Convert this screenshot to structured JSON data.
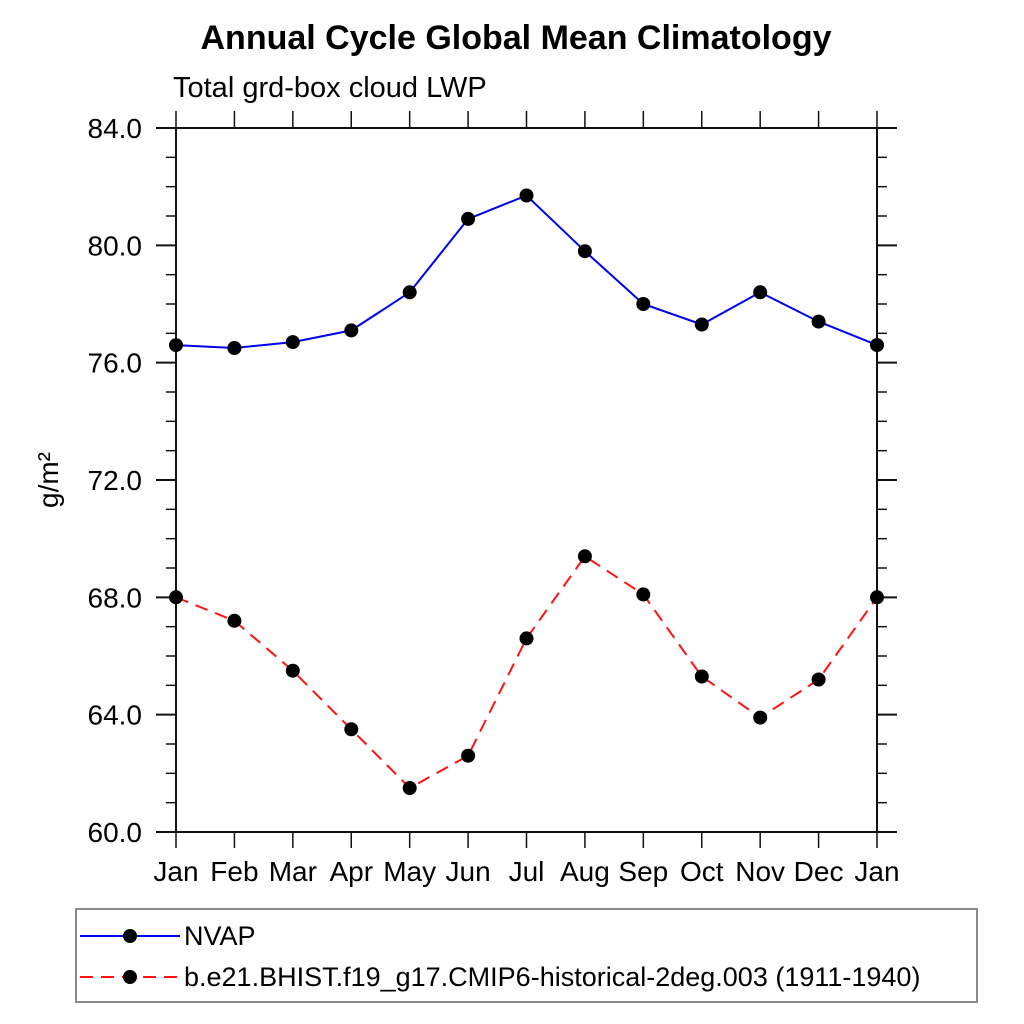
{
  "chart_data": {
    "type": "line",
    "title": "Annual Cycle Global Mean Climatology",
    "subtitle": "Total grd-box cloud LWP",
    "xlabel": "",
    "ylabel": "g/m²",
    "ylim": [
      60.0,
      84.0
    ],
    "ytick_major_step": 4.0,
    "ytick_minor_step": 1.0,
    "ytick_labels": [
      "60.0",
      "64.0",
      "68.0",
      "72.0",
      "76.0",
      "80.0",
      "84.0"
    ],
    "grid": false,
    "legend_position": "bottom-left",
    "categories": [
      "Jan",
      "Feb",
      "Mar",
      "Apr",
      "May",
      "Jun",
      "Jul",
      "Aug",
      "Sep",
      "Oct",
      "Nov",
      "Dec",
      "Jan"
    ],
    "series": [
      {
        "name": "NVAP",
        "color": "#0000ee",
        "line_style": "solid",
        "marker": "circle",
        "marker_color": "#000000",
        "values": [
          76.6,
          76.5,
          76.7,
          77.1,
          78.4,
          80.9,
          81.7,
          79.8,
          78.0,
          77.3,
          78.4,
          77.4,
          76.6
        ]
      },
      {
        "name": "b.e21.BHIST.f19_g17.CMIP6-historical-2deg.003 (1911-1940)",
        "color": "#ff1212",
        "line_style": "dashed",
        "marker": "circle",
        "marker_color": "#000000",
        "values": [
          68.0,
          67.2,
          65.5,
          63.5,
          61.5,
          62.6,
          66.6,
          69.4,
          68.1,
          65.3,
          63.9,
          65.2,
          68.0
        ]
      }
    ]
  }
}
